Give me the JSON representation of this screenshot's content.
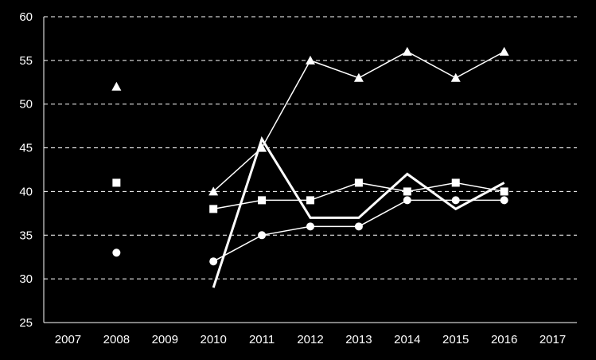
{
  "chart_data": {
    "type": "line",
    "x": [
      "2007",
      "2008",
      "2009",
      "2010",
      "2011",
      "2012",
      "2013",
      "2014",
      "2015",
      "2016",
      "2017"
    ],
    "y_ticks": [
      25,
      30,
      35,
      40,
      45,
      50,
      55,
      60
    ],
    "ylim": [
      25,
      60
    ],
    "grid": "horizontal dashed",
    "legend": "none",
    "series": [
      {
        "marker": "triangle",
        "values": [
          null,
          52,
          null,
          40,
          45,
          55,
          53,
          56,
          53,
          56,
          null
        ]
      },
      {
        "marker": "square",
        "values": [
          null,
          41,
          null,
          38,
          39,
          39,
          41,
          40,
          41,
          40,
          null
        ]
      },
      {
        "marker": "circle",
        "values": [
          null,
          33,
          null,
          32,
          35,
          36,
          36,
          39,
          39,
          39,
          null
        ]
      },
      {
        "marker": "none",
        "thick": true,
        "values": [
          null,
          null,
          null,
          29,
          46,
          37,
          37,
          42,
          38,
          41,
          null
        ]
      }
    ],
    "colors": {
      "background": "#000000",
      "foreground": "#ffffff"
    }
  }
}
